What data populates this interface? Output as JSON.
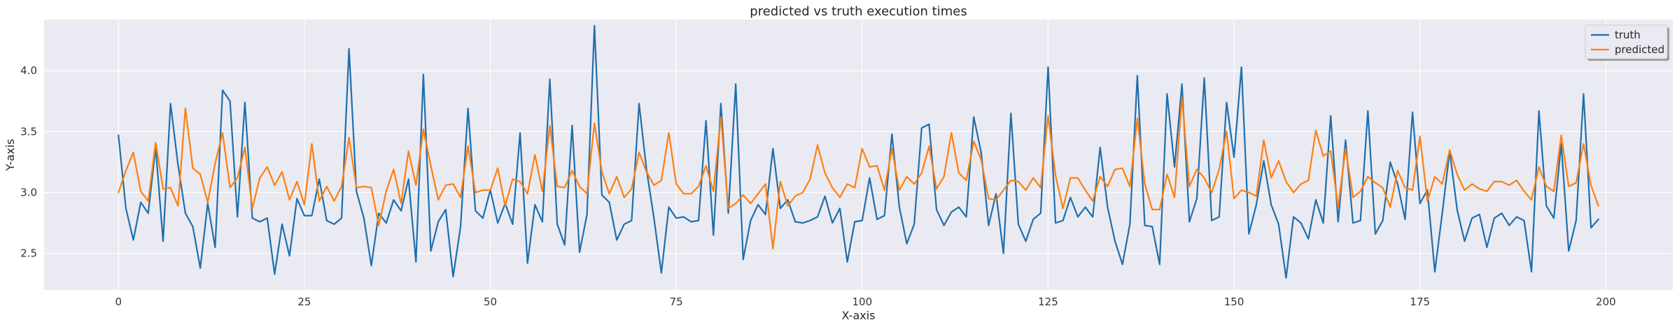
{
  "chart_data": {
    "type": "line",
    "title": "predicted vs truth execution times",
    "xlabel": "X-axis",
    "ylabel": "Y-axis",
    "xlim": [
      -10,
      209
    ],
    "ylim": [
      2.2,
      4.42
    ],
    "xticks": [
      0,
      25,
      50,
      75,
      100,
      125,
      150,
      175,
      200
    ],
    "yticks": [
      2.5,
      3.0,
      3.5,
      4.0
    ],
    "ytick_labels": [
      "2.5",
      "3.0",
      "3.5",
      "4.0"
    ],
    "grid": true,
    "legend_position": "top-right",
    "background": "#eaeaf2",
    "series": [
      {
        "name": "truth",
        "color": "#1f6fad",
        "values": [
          3.47,
          2.87,
          2.61,
          2.92,
          2.83,
          3.37,
          2.6,
          3.73,
          3.23,
          2.83,
          2.72,
          2.38,
          2.91,
          2.55,
          3.84,
          3.75,
          2.8,
          3.74,
          2.79,
          2.76,
          2.79,
          2.33,
          2.74,
          2.48,
          2.95,
          2.81,
          2.81,
          3.11,
          2.77,
          2.74,
          2.79,
          4.18,
          3.01,
          2.79,
          2.4,
          2.83,
          2.75,
          2.94,
          2.85,
          3.11,
          2.43,
          3.97,
          2.52,
          2.76,
          2.86,
          2.31,
          2.72,
          3.69,
          2.85,
          2.79,
          3.02,
          2.75,
          2.91,
          2.74,
          3.49,
          2.42,
          2.9,
          2.76,
          3.93,
          2.74,
          2.57,
          3.55,
          2.51,
          2.82,
          4.37,
          2.98,
          2.92,
          2.61,
          2.74,
          2.77,
          3.73,
          3.19,
          2.79,
          2.34,
          2.88,
          2.79,
          2.8,
          2.76,
          2.77,
          3.59,
          2.65,
          3.73,
          2.83,
          3.89,
          2.45,
          2.77,
          2.9,
          2.82,
          3.36,
          2.87,
          2.94,
          2.76,
          2.75,
          2.77,
          2.8,
          2.97,
          2.75,
          2.87,
          2.43,
          2.76,
          2.77,
          3.12,
          2.78,
          2.81,
          3.48,
          2.88,
          2.58,
          2.74,
          3.53,
          3.56,
          2.86,
          2.73,
          2.84,
          2.88,
          2.8,
          3.62,
          3.33,
          2.73,
          2.99,
          2.5,
          3.65,
          2.74,
          2.6,
          2.78,
          2.83,
          4.03,
          2.75,
          2.77,
          2.96,
          2.8,
          2.88,
          2.8,
          3.37,
          2.88,
          2.6,
          2.41,
          2.74,
          3.96,
          2.73,
          2.72,
          2.41,
          3.81,
          3.21,
          3.89,
          2.76,
          2.95,
          3.94,
          2.77,
          2.8,
          3.74,
          3.29,
          4.03,
          2.66,
          2.9,
          3.26,
          2.9,
          2.74,
          2.3,
          2.8,
          2.75,
          2.62,
          2.94,
          2.75,
          3.63,
          2.76,
          3.43,
          2.75,
          2.77,
          3.67,
          2.66,
          2.77,
          3.25,
          3.07,
          2.78,
          3.66,
          2.91,
          3.02,
          2.35,
          2.83,
          3.34,
          2.86,
          2.6,
          2.79,
          2.82,
          2.55,
          2.79,
          2.83,
          2.73,
          2.8,
          2.77,
          2.35,
          3.67,
          2.89,
          2.79,
          3.4,
          2.52,
          2.77,
          3.81,
          2.71,
          2.78
        ]
      },
      {
        "name": "predicted",
        "color": "#ff7f0e",
        "values": [
          3.0,
          3.18,
          3.33,
          3.01,
          2.93,
          3.41,
          3.03,
          3.04,
          2.89,
          3.69,
          3.2,
          3.15,
          2.92,
          3.24,
          3.49,
          3.04,
          3.12,
          3.37,
          2.87,
          3.12,
          3.21,
          3.06,
          3.17,
          2.94,
          3.09,
          2.9,
          3.4,
          2.93,
          3.05,
          2.93,
          3.05,
          3.45,
          3.04,
          3.05,
          3.04,
          2.73,
          3.01,
          3.19,
          2.91,
          3.34,
          3.06,
          3.52,
          3.22,
          2.94,
          3.06,
          3.07,
          2.96,
          3.38,
          3.0,
          3.02,
          3.02,
          3.2,
          2.89,
          3.11,
          3.09,
          2.99,
          3.31,
          3.01,
          3.55,
          3.05,
          3.04,
          3.18,
          3.05,
          2.99,
          3.57,
          3.17,
          2.99,
          3.13,
          2.96,
          3.03,
          3.33,
          3.17,
          3.06,
          3.1,
          3.49,
          3.07,
          2.99,
          2.99,
          3.05,
          3.22,
          3.01,
          3.62,
          2.87,
          2.91,
          2.98,
          2.91,
          2.99,
          3.07,
          2.54,
          3.09,
          2.89,
          2.97,
          3.0,
          3.11,
          3.39,
          3.16,
          3.04,
          2.96,
          3.07,
          3.04,
          3.36,
          3.21,
          3.22,
          3.02,
          3.36,
          3.02,
          3.13,
          3.07,
          3.16,
          3.38,
          3.03,
          3.13,
          3.49,
          3.16,
          3.1,
          3.42,
          3.27,
          2.95,
          2.94,
          3.02,
          3.1,
          3.09,
          3.02,
          3.12,
          3.04,
          3.63,
          3.14,
          2.87,
          3.12,
          3.12,
          3.02,
          2.93,
          3.13,
          3.05,
          3.19,
          3.2,
          3.05,
          3.61,
          3.07,
          2.86,
          2.86,
          3.15,
          2.96,
          3.78,
          3.05,
          3.19,
          3.12,
          3.0,
          3.19,
          3.5,
          2.95,
          3.02,
          3.0,
          2.97,
          3.43,
          3.12,
          3.26,
          3.09,
          3.0,
          3.07,
          3.1,
          3.51,
          3.3,
          3.34,
          2.88,
          3.36,
          2.96,
          3.01,
          3.13,
          3.08,
          3.04,
          2.88,
          3.18,
          3.04,
          3.02,
          3.46,
          2.93,
          3.13,
          3.07,
          3.35,
          3.15,
          3.02,
          3.07,
          3.03,
          3.01,
          3.09,
          3.09,
          3.06,
          3.1,
          3.01,
          2.94,
          3.21,
          3.05,
          3.01,
          3.47,
          3.05,
          3.08,
          3.4,
          3.06,
          2.89
        ]
      }
    ]
  }
}
